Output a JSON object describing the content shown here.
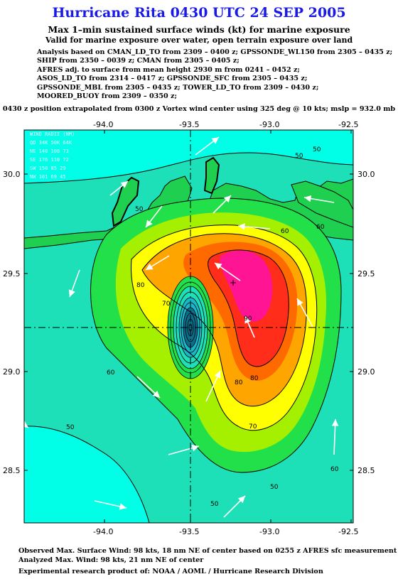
{
  "title": "Hurricane Rita 0430 UTC 24 SEP 2005",
  "subtitle": "Max 1–min sustained surface winds (kt) for marine exposure",
  "subtitle2": "Valid for marine exposure over water, open terrain exposure over land",
  "analysis_lines": [
    "Analysis based on  CMAN_LD_TO from 2309 – 0400 z;  GPSSONDE_WL150 from 2305 – 0435 z;",
    "SHIP from 2350 – 0039 z;  CMAN from 2305 – 0405 z;",
    "AFRES adj. to surface from mean height 2930 m from 0241 – 0452 z;",
    "ASOS_LD_TO from 2314 – 0417 z;  GPSSONDE_SFC from 2305 – 0435 z;",
    "GPSSONDE_MBL from 2305 – 0435 z;  TOWER_LD_TO from 2309 – 0430 z;",
    "MOORED_BUOY from 2309 – 0350 z;"
  ],
  "position_note": "0430 z position extrapolated from 0300 z Vortex wind center using 325 deg @ 10 kts; mslp = 932.0 mb",
  "axes": {
    "lon_ticks": [
      "-94.0",
      "-93.5",
      "-93.0",
      "-92.5"
    ],
    "lat_ticks": [
      "30.0",
      "29.5",
      "29.0",
      "28.5"
    ]
  },
  "wind_radii": {
    "header": "WIND RADII (NM)",
    "cols": "QD 34K 50K 64K",
    "rows": [
      "NE 140 108  73",
      "SE 176 110  72",
      "SW 150  85  29",
      "NW 101  69  45"
    ]
  },
  "contour_labels": [
    "50",
    "50",
    "50",
    "50",
    "50",
    "50",
    "60",
    "60",
    "60",
    "60",
    "70",
    "70",
    "80",
    "80",
    "80",
    "90"
  ],
  "colors": {
    "bg": "#1de0b8",
    "c40": "#00ffe6",
    "c50": "#1de0b8",
    "c60": "#22e04a",
    "c65": "#a4f000",
    "c70": "#ffff00",
    "c80": "#ffa500",
    "c85": "#ff6a00",
    "c90": "#ff2d1a",
    "c95": "#ff1493",
    "eye": "#0b6e8a",
    "land": "#1fd050"
  },
  "footer": {
    "observed": "Observed Max. Surface Wind: 98 kts, 18 nm NE of center based on 0255 z AFRES sfc measurement",
    "analyzed": "Analyzed Max. Wind: 98 kts, 21 nm NE of center",
    "credit": "Experimental research product of:  NOAA / AOML / Hurricane Research Division"
  }
}
